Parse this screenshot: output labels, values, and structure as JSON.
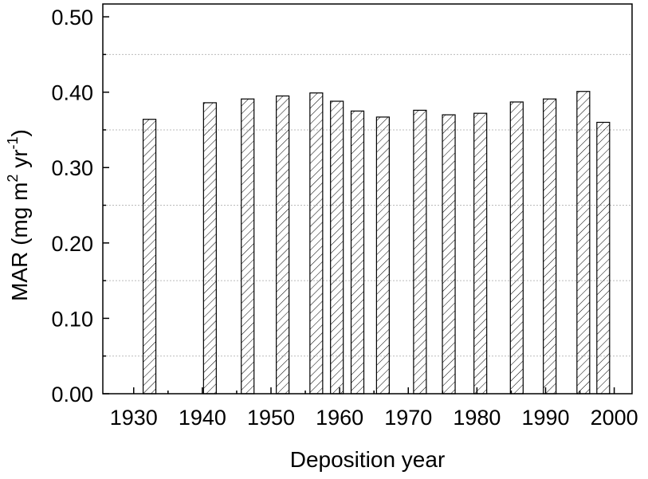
{
  "chart_data": {
    "type": "bar",
    "x_label": "Deposition year",
    "y_label": [
      "MAR (mg m",
      "2",
      " yr",
      "-1",
      ")"
    ],
    "x": [
      1932.3,
      1941.1,
      1946.6,
      1951.7,
      1956.6,
      1959.6,
      1962.6,
      1966.3,
      1971.7,
      1975.9,
      1980.5,
      1985.8,
      1990.6,
      1995.5,
      1998.4
    ],
    "values": [
      0.364,
      0.386,
      0.391,
      0.395,
      0.399,
      0.388,
      0.375,
      0.367,
      0.376,
      0.37,
      0.372,
      0.387,
      0.391,
      0.401,
      0.36
    ],
    "color": "#000000",
    "xlim": [
      1925.5,
      2002.6
    ],
    "ylim": [
      0,
      0.517
    ],
    "xticks": [
      1930,
      1940,
      1950,
      1960,
      1970,
      1980,
      1990,
      2000
    ],
    "minor_xticks": [
      1935,
      1945,
      1955,
      1965,
      1975,
      1985,
      1995
    ],
    "yticks": [
      {
        "value": 0,
        "label": "0.00"
      },
      {
        "value": 0.1,
        "label": "0.10"
      },
      {
        "value": 0.2,
        "label": "0.20"
      },
      {
        "value": 0.3,
        "label": "0.30"
      },
      {
        "value": 0.4,
        "label": "0.40"
      },
      {
        "value": 0.5,
        "label": "0.50"
      }
    ],
    "minor_yticks": [
      0.05,
      0.15,
      0.25,
      0.35,
      0.45
    ],
    "grid": true,
    "hatch": true
  }
}
